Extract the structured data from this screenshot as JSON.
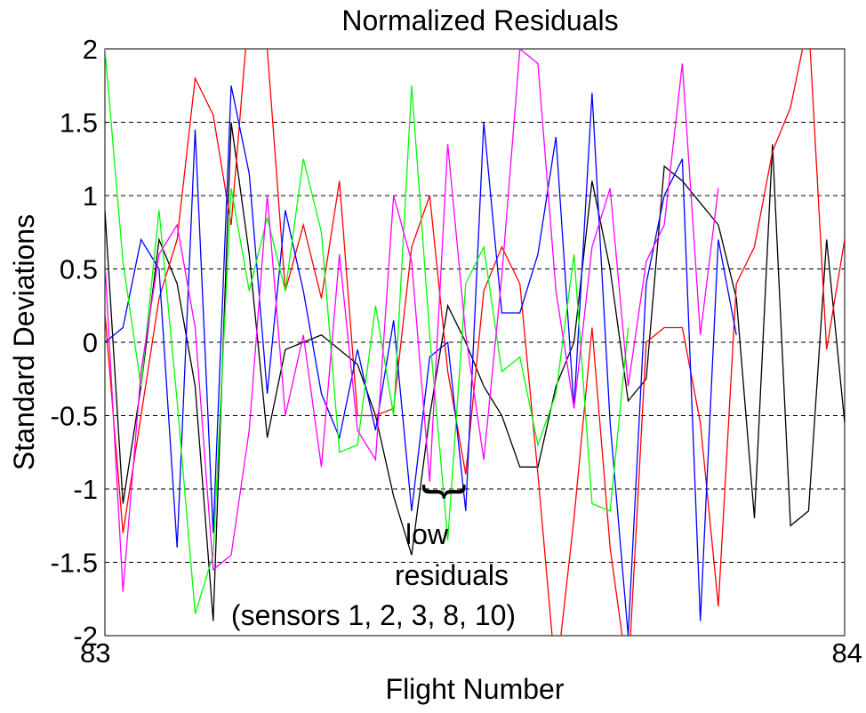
{
  "chart_data": {
    "type": "line",
    "title": "Normalized Residuals",
    "xlabel": "Flight Number",
    "ylabel": "Standard Deviations",
    "xlim": [
      83,
      84
    ],
    "ylim": [
      -2,
      2
    ],
    "x_ticks": [
      "83",
      "84"
    ],
    "y_ticks": [
      {
        "value": 2,
        "label": "2"
      },
      {
        "value": 1.5,
        "label": "1.5"
      },
      {
        "value": 1,
        "label": "1"
      },
      {
        "value": 0.5,
        "label": "0.5"
      },
      {
        "value": 0,
        "label": "0"
      },
      {
        "value": -0.5,
        "label": "-0.5"
      },
      {
        "value": -1,
        "label": "-1"
      },
      {
        "value": -1.5,
        "label": "-1.5"
      },
      {
        "value": -2,
        "label": "-2"
      }
    ],
    "grid": true,
    "x_step": 0.02439,
    "series": [
      {
        "color": "#000000",
        "values": [
          0.9,
          -1.1,
          -0.3,
          0.7,
          0.4,
          -0.3,
          -1.9,
          1.5,
          0.6,
          -0.65,
          -0.05,
          0.0,
          0.05,
          -0.05,
          -0.15,
          -0.5,
          -1.05,
          -1.45,
          -0.5,
          0.25,
          0.0,
          -0.3,
          -0.5,
          -0.85,
          -0.85,
          -0.3,
          0.0,
          1.1,
          0.5,
          -0.4,
          -0.25,
          1.2,
          1.1,
          0.95,
          0.8,
          0.3,
          -1.2,
          1.35,
          -1.25,
          -1.15,
          0.7,
          -0.55
        ]
      },
      {
        "color": "#ff0000",
        "values": [
          0.2,
          -1.3,
          -0.5,
          0.3,
          0.7,
          1.8,
          1.55,
          0.8,
          2.3,
          2.0,
          0.35,
          0.8,
          0.3,
          1.1,
          -0.5,
          -0.5,
          -0.45,
          0.65,
          1.0,
          -0.2,
          -0.9,
          0.35,
          0.65,
          0.4,
          -0.9,
          -2.3,
          -1.2,
          0.1,
          -1.4,
          -2.3,
          0.0,
          0.1,
          0.1,
          -0.55,
          -1.8,
          0.4,
          0.65,
          1.3,
          1.6,
          2.2,
          -0.05,
          0.7
        ]
      },
      {
        "color": "#0000ff",
        "values": [
          0.0,
          0.1,
          0.7,
          0.5,
          -1.4,
          1.45,
          -1.3,
          1.75,
          1.15,
          -0.35,
          0.9,
          0.35,
          -0.35,
          -0.65,
          -0.05,
          -0.6,
          0.15,
          -1.15,
          -0.1,
          0.0,
          -1.15,
          1.5,
          0.2,
          0.2,
          0.6,
          1.4,
          -0.45,
          1.7,
          -0.55,
          -2.0,
          0.4,
          1.0,
          1.25,
          -1.9,
          0.7,
          0.05
        ]
      },
      {
        "color": "#00ff00",
        "values": [
          2.0,
          0.55,
          -0.3,
          0.9,
          -0.4,
          -1.85,
          -1.45,
          1.05,
          0.35,
          0.85,
          0.35,
          1.25,
          0.75,
          -0.75,
          -0.7,
          0.25,
          -0.5,
          1.75,
          0.05,
          -1.35,
          0.4,
          0.65,
          -0.2,
          -0.1,
          -0.7,
          -0.35,
          0.6,
          -1.1,
          -1.15,
          0.1
        ]
      },
      {
        "color": "#ff00ff",
        "values": [
          0.55,
          -1.7,
          -0.2,
          0.6,
          0.8,
          0.1,
          -1.55,
          -1.45,
          -0.6,
          1.0,
          -0.5,
          0.05,
          -0.85,
          0.6,
          -0.6,
          -0.8,
          1.0,
          0.55,
          -0.95,
          1.35,
          0.05,
          -0.8,
          0.45,
          2.0,
          1.9,
          0.35,
          -0.45,
          0.65,
          1.05,
          -0.3,
          0.55,
          0.8,
          1.9,
          0.05,
          1.05
        ]
      }
    ],
    "annotation": {
      "text_lines": [
        "low",
        "residuals",
        "(sensors 1, 2, 3, 8, 10)"
      ],
      "brace_symbol": "}"
    }
  }
}
